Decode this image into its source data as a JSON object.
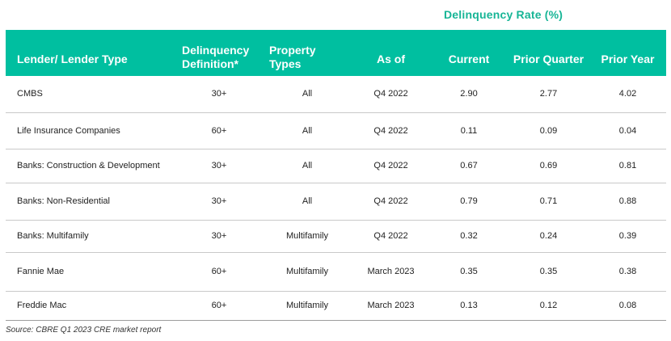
{
  "super_header": "Delinquency  Rate (%)",
  "columns": {
    "lender": "Lender/ Lender Type",
    "definition": "Delinquency Definition*",
    "property": "Property Types",
    "as_of": "As of",
    "current": "Current",
    "prior_quarter": "Prior Quarter",
    "prior_year": "Prior Year"
  },
  "rows": [
    {
      "lender": "CMBS",
      "definition": "30+",
      "property": "All",
      "as_of": "Q4 2022",
      "current": "2.90",
      "prior_quarter": "2.77",
      "prior_year": "4.02"
    },
    {
      "lender": "Life Insurance Companies",
      "definition": "60+",
      "property": "All",
      "as_of": "Q4 2022",
      "current": "0.11",
      "prior_quarter": "0.09",
      "prior_year": "0.04"
    },
    {
      "lender": "Banks: Construction & Development",
      "definition": "30+",
      "property": "All",
      "as_of": "Q4 2022",
      "current": "0.67",
      "prior_quarter": "0.69",
      "prior_year": "0.81"
    },
    {
      "lender": "Banks: Non-Residential",
      "definition": "30+",
      "property": "All",
      "as_of": "Q4 2022",
      "current": "0.79",
      "prior_quarter": "0.71",
      "prior_year": "0.88"
    },
    {
      "lender": "Banks: Multifamily",
      "definition": "30+",
      "property": "Multifamily",
      "as_of": "Q4 2022",
      "current": "0.32",
      "prior_quarter": "0.24",
      "prior_year": "0.39"
    },
    {
      "lender": "Fannie Mae",
      "definition": "60+",
      "property": "Multifamily",
      "as_of": "March 2023",
      "current": "0.35",
      "prior_quarter": "0.35",
      "prior_year": "0.38"
    },
    {
      "lender": "Freddie Mac",
      "definition": "60+",
      "property": "Multifamily",
      "as_of": "March 2023",
      "current": "0.13",
      "prior_quarter": "0.12",
      "prior_year": "0.08"
    }
  ],
  "source": "Source: CBRE Q1 2023 CRE market report",
  "colors": {
    "header_bg": "#00bfa0",
    "accent_text": "#17b596"
  }
}
